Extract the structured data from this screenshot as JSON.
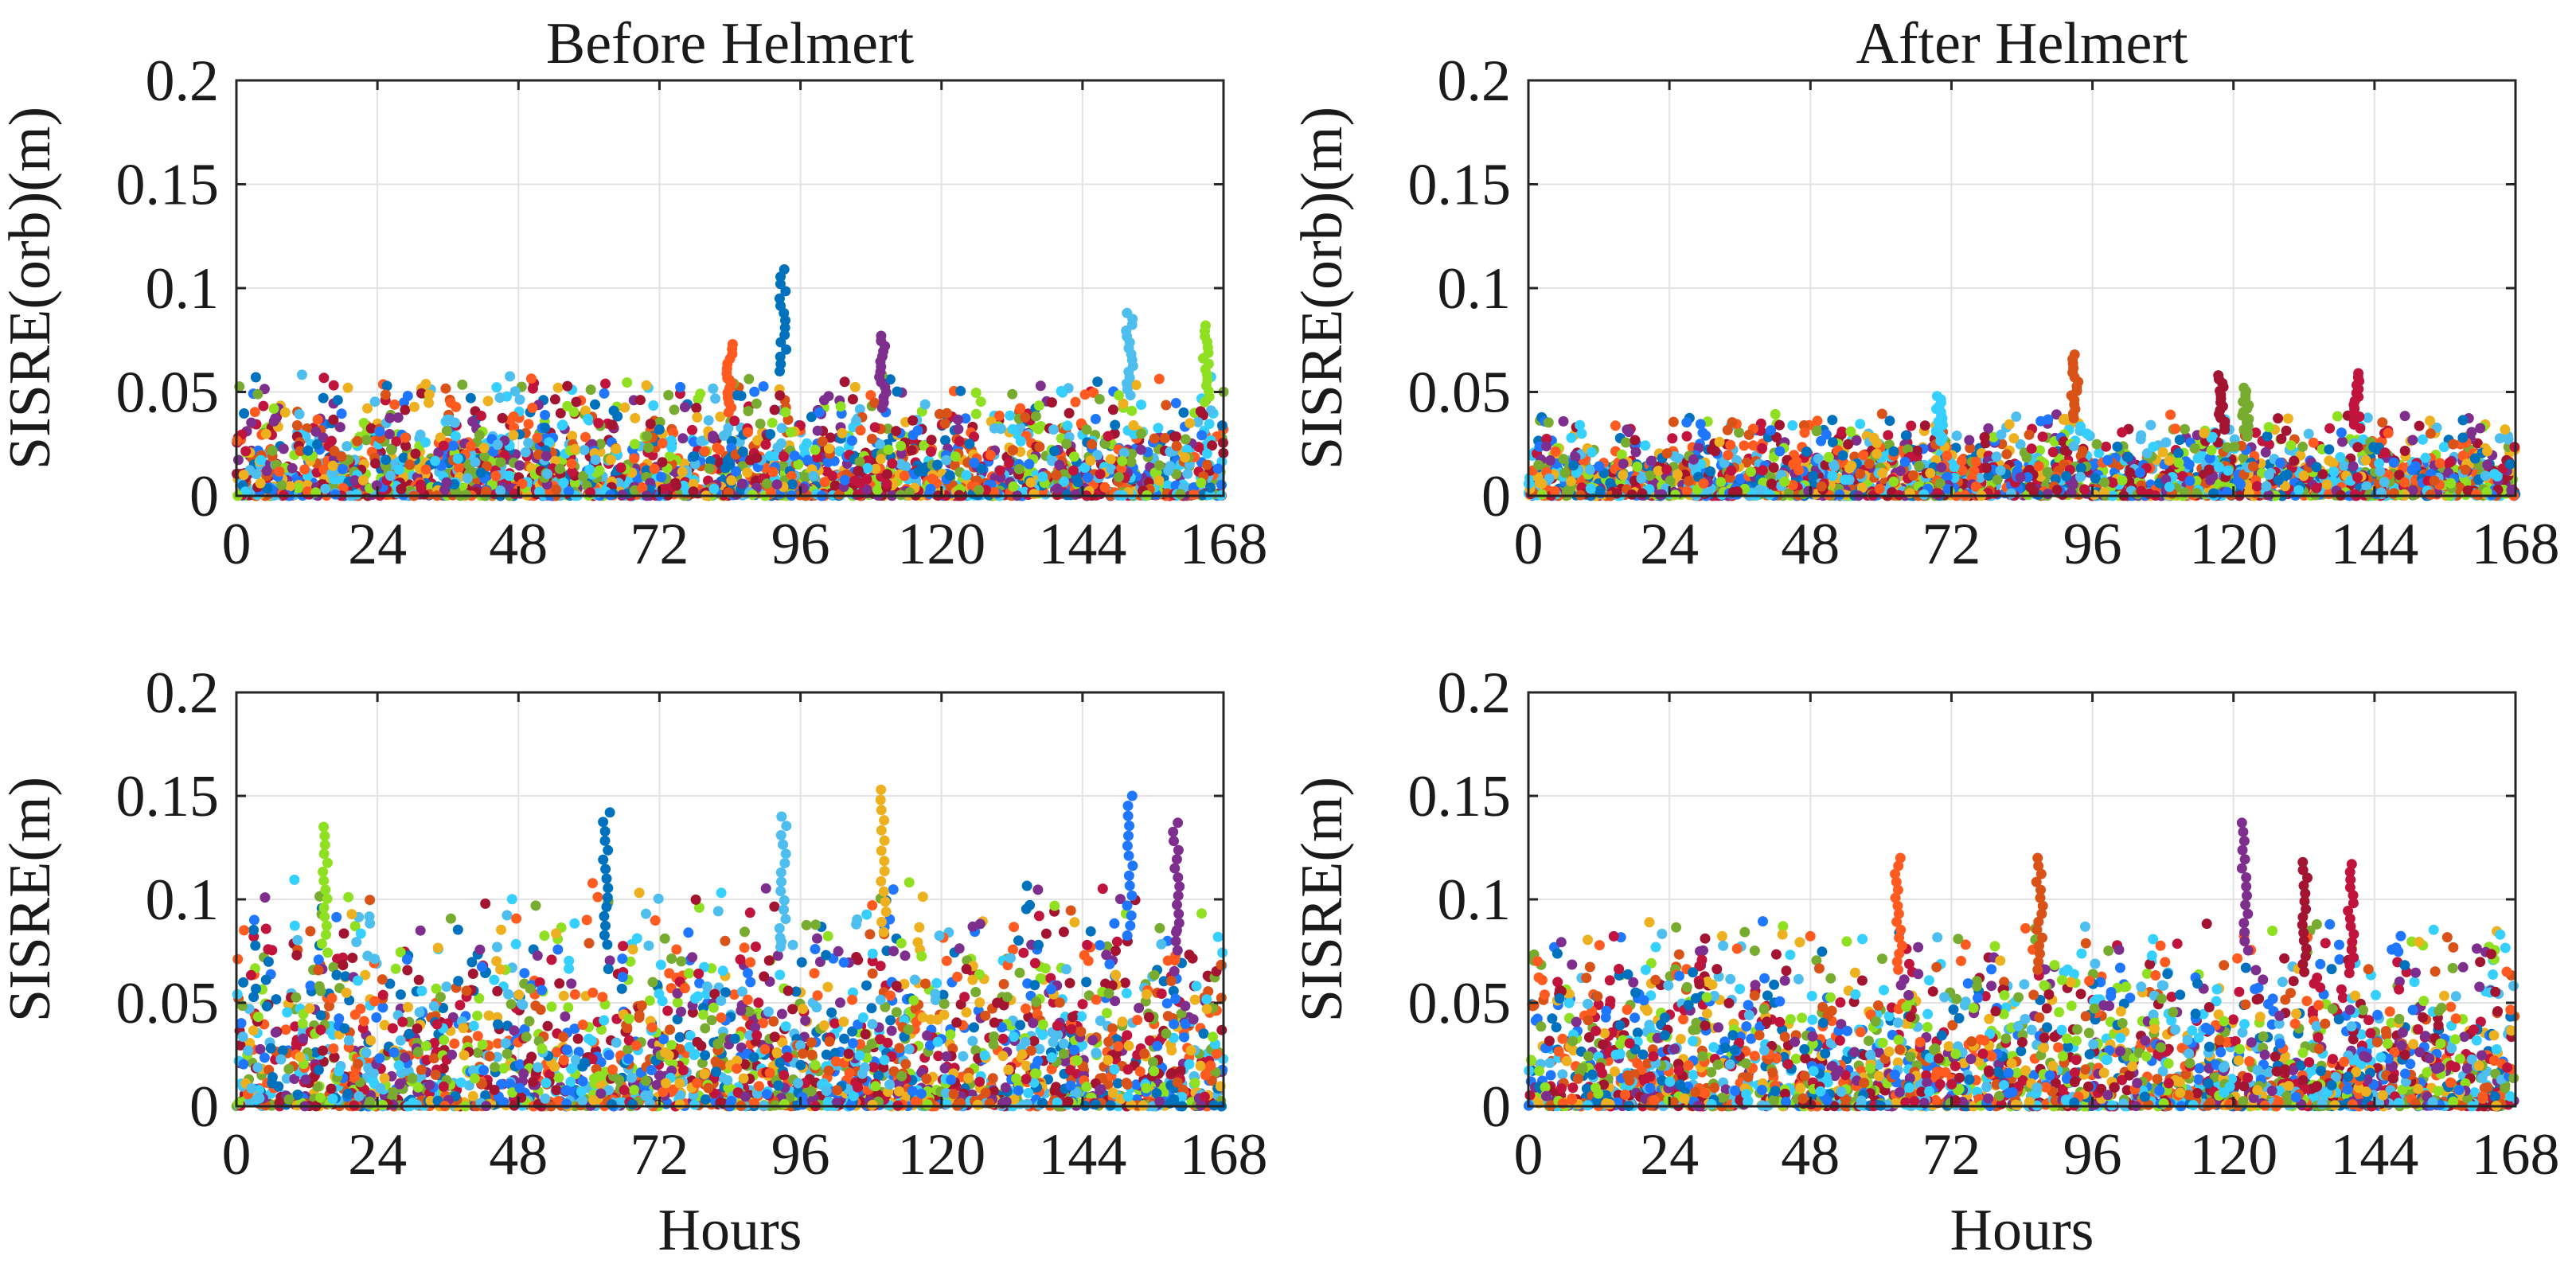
{
  "chart_data": [
    {
      "id": "orb-before",
      "type": "scatter",
      "title": "Before Helmert",
      "xlabel": "",
      "ylabel": "SISRE(orb)(m)",
      "xlim": [
        0,
        168
      ],
      "ylim": [
        0,
        0.2
      ],
      "xticks": [
        0,
        24,
        48,
        72,
        96,
        120,
        144,
        168
      ],
      "xtick_labels": [
        "0",
        "24",
        "48",
        "72",
        "96",
        "120",
        "144",
        "168"
      ],
      "yticks": [
        0,
        0.05,
        0.1,
        0.15,
        0.2
      ],
      "ytick_labels": [
        "0",
        "0.05",
        "0.1",
        "0.15",
        "0.2"
      ],
      "grid": true,
      "series_colors": [
        "#0072bd",
        "#d95319",
        "#edb120",
        "#7e2f8e",
        "#77ac30",
        "#4dbeee",
        "#a2142f",
        "#1f77ff",
        "#ff5a1f",
        "#35d0ff",
        "#8fe020",
        "#c0143c"
      ],
      "typical_range": [
        0,
        0.06
      ],
      "peaks": [
        {
          "x": 93,
          "y": 0.109
        },
        {
          "x": 152,
          "y": 0.088
        },
        {
          "x": 165,
          "y": 0.082
        },
        {
          "x": 110,
          "y": 0.077
        },
        {
          "x": 84,
          "y": 0.073
        }
      ]
    },
    {
      "id": "orb-after",
      "type": "scatter",
      "title": "After Helmert",
      "xlabel": "",
      "ylabel": "SISRE(orb)(m)",
      "xlim": [
        0,
        168
      ],
      "ylim": [
        0,
        0.2
      ],
      "xticks": [
        0,
        24,
        48,
        72,
        96,
        120,
        144,
        168
      ],
      "xtick_labels": [
        "0",
        "24",
        "48",
        "72",
        "96",
        "120",
        "144",
        "168"
      ],
      "yticks": [
        0,
        0.05,
        0.1,
        0.15,
        0.2
      ],
      "ytick_labels": [
        "0",
        "0.05",
        "0.1",
        "0.15",
        "0.2"
      ],
      "grid": true,
      "series_colors": [
        "#0072bd",
        "#d95319",
        "#edb120",
        "#7e2f8e",
        "#77ac30",
        "#4dbeee",
        "#a2142f",
        "#1f77ff",
        "#ff5a1f",
        "#35d0ff",
        "#8fe020",
        "#c0143c"
      ],
      "typical_range": [
        0,
        0.04
      ],
      "peaks": [
        {
          "x": 93,
          "y": 0.068
        },
        {
          "x": 118,
          "y": 0.058
        },
        {
          "x": 141,
          "y": 0.059
        },
        {
          "x": 122,
          "y": 0.052
        },
        {
          "x": 70,
          "y": 0.048
        }
      ]
    },
    {
      "id": "sisre-before",
      "type": "scatter",
      "title": "",
      "xlabel": "Hours",
      "ylabel": "SISRE(m)",
      "xlim": [
        0,
        168
      ],
      "ylim": [
        0,
        0.2
      ],
      "xticks": [
        0,
        24,
        48,
        72,
        96,
        120,
        144,
        168
      ],
      "xtick_labels": [
        "0",
        "24",
        "48",
        "72",
        "96",
        "120",
        "144",
        "168"
      ],
      "yticks": [
        0,
        0.05,
        0.1,
        0.15,
        0.2
      ],
      "ytick_labels": [
        "0",
        "0.05",
        "0.1",
        "0.15",
        "0.2"
      ],
      "grid": true,
      "series_colors": [
        "#0072bd",
        "#d95319",
        "#edb120",
        "#7e2f8e",
        "#77ac30",
        "#4dbeee",
        "#a2142f",
        "#1f77ff",
        "#ff5a1f",
        "#35d0ff",
        "#8fe020",
        "#c0143c"
      ],
      "typical_range": [
        0,
        0.11
      ],
      "peaks": [
        {
          "x": 110,
          "y": 0.153
        },
        {
          "x": 152,
          "y": 0.15
        },
        {
          "x": 63,
          "y": 0.142
        },
        {
          "x": 93,
          "y": 0.14
        },
        {
          "x": 15,
          "y": 0.135
        },
        {
          "x": 160,
          "y": 0.137
        }
      ]
    },
    {
      "id": "sisre-after",
      "type": "scatter",
      "title": "",
      "xlabel": "Hours",
      "ylabel": "SISRE(m)",
      "xlim": [
        0,
        168
      ],
      "ylim": [
        0,
        0.2
      ],
      "xticks": [
        0,
        24,
        48,
        72,
        96,
        120,
        144,
        168
      ],
      "xtick_labels": [
        "0",
        "24",
        "48",
        "72",
        "96",
        "120",
        "144",
        "168"
      ],
      "yticks": [
        0,
        0.05,
        0.1,
        0.15,
        0.2
      ],
      "ytick_labels": [
        "0",
        "0.05",
        "0.1",
        "0.15",
        "0.2"
      ],
      "grid": true,
      "series_colors": [
        "#0072bd",
        "#d95319",
        "#edb120",
        "#7e2f8e",
        "#77ac30",
        "#4dbeee",
        "#a2142f",
        "#1f77ff",
        "#ff5a1f",
        "#35d0ff",
        "#8fe020",
        "#c0143c"
      ],
      "typical_range": [
        0,
        0.09
      ],
      "peaks": [
        {
          "x": 122,
          "y": 0.137
        },
        {
          "x": 63,
          "y": 0.12
        },
        {
          "x": 87,
          "y": 0.12
        },
        {
          "x": 132,
          "y": 0.118
        },
        {
          "x": 140,
          "y": 0.117
        }
      ]
    }
  ]
}
